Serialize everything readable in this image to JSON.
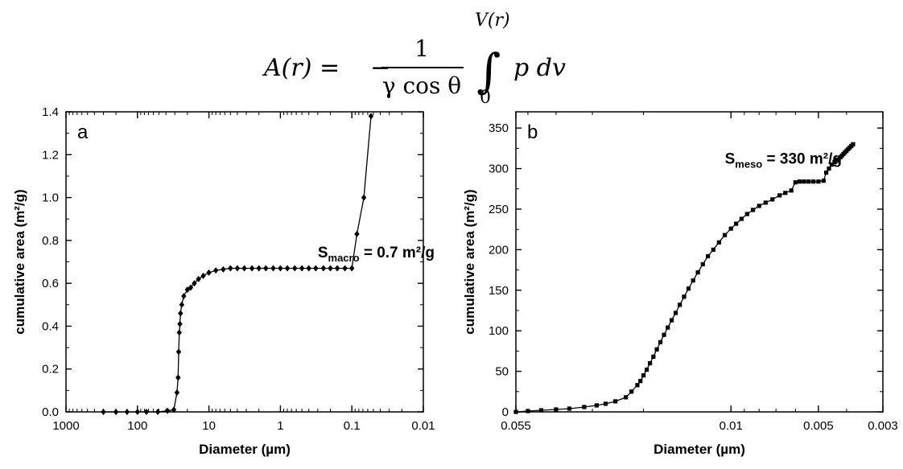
{
  "formula": {
    "lhs": "A(r) =",
    "minus": "−",
    "numerator": "1",
    "denominator": "γ cos θ",
    "upper_limit": "V(r)",
    "lower_limit": "0",
    "integrand": "p dv"
  },
  "chart_data": [
    {
      "type": "line",
      "panel_label": "a",
      "xlabel": "Diameter (µm)",
      "ylabel": "cumulative area (m²/g)",
      "x_scale": "log",
      "x_reversed": true,
      "xlim": [
        1000,
        0.01
      ],
      "ylim": [
        0,
        1.4
      ],
      "x_ticks": [
        1000,
        100,
        10,
        1,
        0.1,
        0.01
      ],
      "x_tick_labels": [
        "1000",
        "100",
        "10",
        "1",
        "0.1",
        "0.01"
      ],
      "y_ticks": [
        0,
        0.2,
        0.4,
        0.6,
        0.8,
        1.0,
        1.2,
        1.4
      ],
      "y_tick_labels": [
        "0.0",
        "0.2",
        "0.4",
        "0.6",
        "0.8",
        "1.0",
        "1.2",
        "1.4"
      ],
      "annotation": {
        "main": "S",
        "sub": "macro",
        "rest": " = 0.7 m²/g",
        "at": [
          0.3,
          0.72
        ]
      },
      "marker": "diamond",
      "series": [
        {
          "x": [
            300,
            200,
            140,
            100,
            75,
            52,
            38,
            31,
            28,
            27,
            26.5,
            26,
            25.5,
            25,
            24,
            22.5,
            20,
            18,
            16,
            14,
            12,
            10,
            8,
            6.3,
            5,
            4,
            3.2,
            2.5,
            2,
            1.6,
            1.26,
            1,
            0.8,
            0.63,
            0.5,
            0.4,
            0.32,
            0.25,
            0.2,
            0.16,
            0.125,
            0.1,
            0.085,
            0.068,
            0.054
          ],
          "y": [
            0,
            0,
            0,
            0,
            0,
            0,
            0.005,
            0.01,
            0.09,
            0.16,
            0.28,
            0.37,
            0.41,
            0.46,
            0.5,
            0.54,
            0.57,
            0.58,
            0.6,
            0.62,
            0.635,
            0.65,
            0.66,
            0.665,
            0.67,
            0.67,
            0.67,
            0.67,
            0.67,
            0.67,
            0.67,
            0.67,
            0.67,
            0.67,
            0.67,
            0.67,
            0.67,
            0.67,
            0.67,
            0.67,
            0.67,
            0.67,
            0.83,
            1.0,
            1.38
          ]
        }
      ]
    },
    {
      "type": "line",
      "panel_label": "b",
      "xlabel": "Diameter (µm)",
      "ylabel": "cumulative area (m²/g)",
      "x_scale": "log",
      "x_reversed": true,
      "xlim": [
        0.055,
        0.003
      ],
      "ylim": [
        0,
        370
      ],
      "x_ticks": [
        0.055,
        0.01,
        0.005,
        0.003
      ],
      "x_tick_labels": [
        "0.055",
        "0.01",
        "0.005",
        "0.003"
      ],
      "y_ticks": [
        0,
        50,
        100,
        150,
        200,
        250,
        300,
        350
      ],
      "y_tick_labels": [
        "0",
        "50",
        "100",
        "150",
        "200",
        "250",
        "300",
        "350"
      ],
      "annotation": {
        "main": "S",
        "sub": "meso",
        "rest": " = 330 m²/g",
        "at": [
          0.0105,
          306
        ]
      },
      "marker": "square",
      "series": [
        {
          "x": [
            0.055,
            0.05,
            0.045,
            0.04,
            0.036,
            0.032,
            0.029,
            0.027,
            0.025,
            0.023,
            0.022,
            0.021,
            0.0205,
            0.02,
            0.0195,
            0.019,
            0.0185,
            0.018,
            0.0175,
            0.017,
            0.0165,
            0.016,
            0.0155,
            0.015,
            0.0145,
            0.014,
            0.0135,
            0.013,
            0.0125,
            0.012,
            0.0115,
            0.011,
            0.0105,
            0.01,
            0.0096,
            0.0092,
            0.0088,
            0.0084,
            0.008,
            0.0076,
            0.0072,
            0.0068,
            0.0065,
            0.0062,
            0.006,
            0.0058,
            0.0056,
            0.0054,
            0.0052,
            0.005,
            0.0048,
            0.0047,
            0.0046,
            0.0045,
            0.0044,
            0.0043,
            0.0042,
            0.00415,
            0.0041,
            0.00405,
            0.004,
            0.00395,
            0.0039,
            0.00385,
            0.0038
          ],
          "y": [
            0,
            1,
            2,
            3,
            4,
            6,
            8,
            10,
            13,
            18,
            25,
            33,
            38,
            45,
            52,
            60,
            68,
            77,
            86,
            95,
            104,
            113,
            122,
            132,
            142,
            152,
            162,
            172,
            182,
            192,
            200,
            209,
            218,
            226,
            232,
            238,
            244,
            249,
            254,
            258,
            262,
            267,
            270,
            273,
            283,
            284,
            284,
            284,
            284,
            284,
            285,
            295,
            300,
            305,
            308,
            311,
            314,
            316,
            318,
            320,
            322,
            324,
            326,
            328,
            330
          ]
        }
      ]
    }
  ]
}
